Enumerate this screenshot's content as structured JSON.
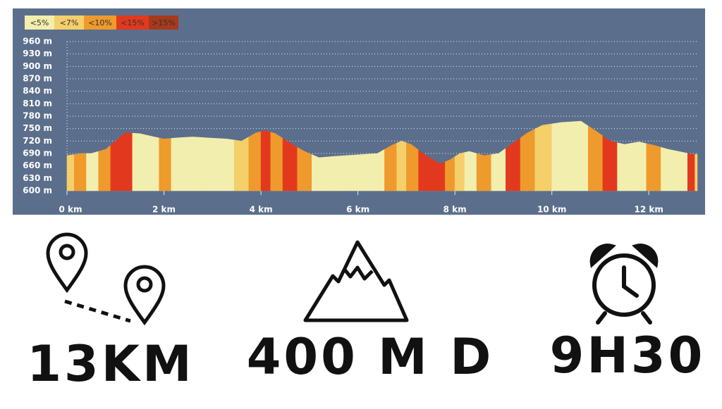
{
  "chart_data": {
    "type": "area",
    "x": [
      0,
      0.3,
      0.5,
      0.8,
      1.0,
      1.2,
      1.5,
      1.8,
      2.0,
      2.3,
      2.6,
      3.0,
      3.3,
      3.6,
      3.9,
      4.1,
      4.3,
      4.6,
      4.9,
      5.2,
      5.5,
      6.0,
      6.4,
      6.7,
      6.9,
      7.1,
      7.4,
      7.7,
      7.9,
      8.1,
      8.3,
      8.6,
      8.9,
      9.2,
      9.5,
      9.8,
      10.2,
      10.6,
      10.9,
      11.2,
      11.5,
      11.8,
      12.1,
      12.4,
      12.7,
      12.9,
      13.0
    ],
    "values": [
      685,
      690,
      690,
      700,
      720,
      740,
      738,
      730,
      725,
      728,
      730,
      727,
      725,
      720,
      740,
      745,
      738,
      715,
      695,
      680,
      683,
      687,
      690,
      710,
      720,
      712,
      685,
      665,
      675,
      690,
      695,
      685,
      690,
      715,
      740,
      758,
      765,
      768,
      745,
      720,
      712,
      718,
      710,
      700,
      693,
      688,
      688
    ],
    "grade": [
      "<7%",
      "<10%",
      "<5%",
      "<10%",
      "<15%",
      "<15%",
      "<5%",
      "<5%",
      "<10%",
      "<5%",
      "<5%",
      "<5%",
      "<5%",
      "<7%",
      "<10%",
      "<15%",
      "<10%",
      "<15%",
      "<10%",
      "<5%",
      "<5%",
      "<5%",
      "<5%",
      "<10%",
      "<7%",
      "<10%",
      "<15%",
      "<15%",
      "<10%",
      "<7%",
      "<5%",
      "<10%",
      "<5%",
      "<15%",
      "<10%",
      "<7%",
      "<5%",
      "<5%",
      "<10%",
      "<15%",
      "<5%",
      "<5%",
      "<10%",
      "<5%",
      "<5%",
      "<15%",
      "<7%"
    ],
    "legend": [
      {
        "label": "<5%",
        "color": "#f2eeae"
      },
      {
        "label": "<7%",
        "color": "#f4cf6a"
      },
      {
        "label": "<10%",
        "color": "#ef9a2c"
      },
      {
        "label": "<15%",
        "color": "#e2391e"
      },
      {
        "label": ">15%",
        "color": "#a8391a"
      }
    ],
    "xlim": [
      0,
      13
    ],
    "xticks": [
      {
        "value": 0,
        "label": "0 km"
      },
      {
        "value": 2,
        "label": "2 km"
      },
      {
        "value": 4,
        "label": "4 km"
      },
      {
        "value": 6,
        "label": "6 km"
      },
      {
        "value": 8,
        "label": "8 km"
      },
      {
        "value": 10,
        "label": "10 km"
      },
      {
        "value": 12,
        "label": "12 km"
      }
    ],
    "ylim": [
      600,
      960
    ],
    "yticks": [
      {
        "value": 600,
        "label": "600 m"
      },
      {
        "value": 630,
        "label": "630 m"
      },
      {
        "value": 660,
        "label": "660 m"
      },
      {
        "value": 690,
        "label": "690 m"
      },
      {
        "value": 720,
        "label": "720 m"
      },
      {
        "value": 750,
        "label": "750 m"
      },
      {
        "value": 780,
        "label": "780 m"
      },
      {
        "value": 810,
        "label": "810 m"
      },
      {
        "value": 840,
        "label": "840 m"
      },
      {
        "value": 870,
        "label": "870 m"
      },
      {
        "value": 900,
        "label": "900 m"
      },
      {
        "value": 930,
        "label": "930 m"
      },
      {
        "value": 960,
        "label": "960 m"
      }
    ],
    "grid": true
  },
  "stats": [
    "13KM",
    "400 M D",
    "9H30"
  ]
}
